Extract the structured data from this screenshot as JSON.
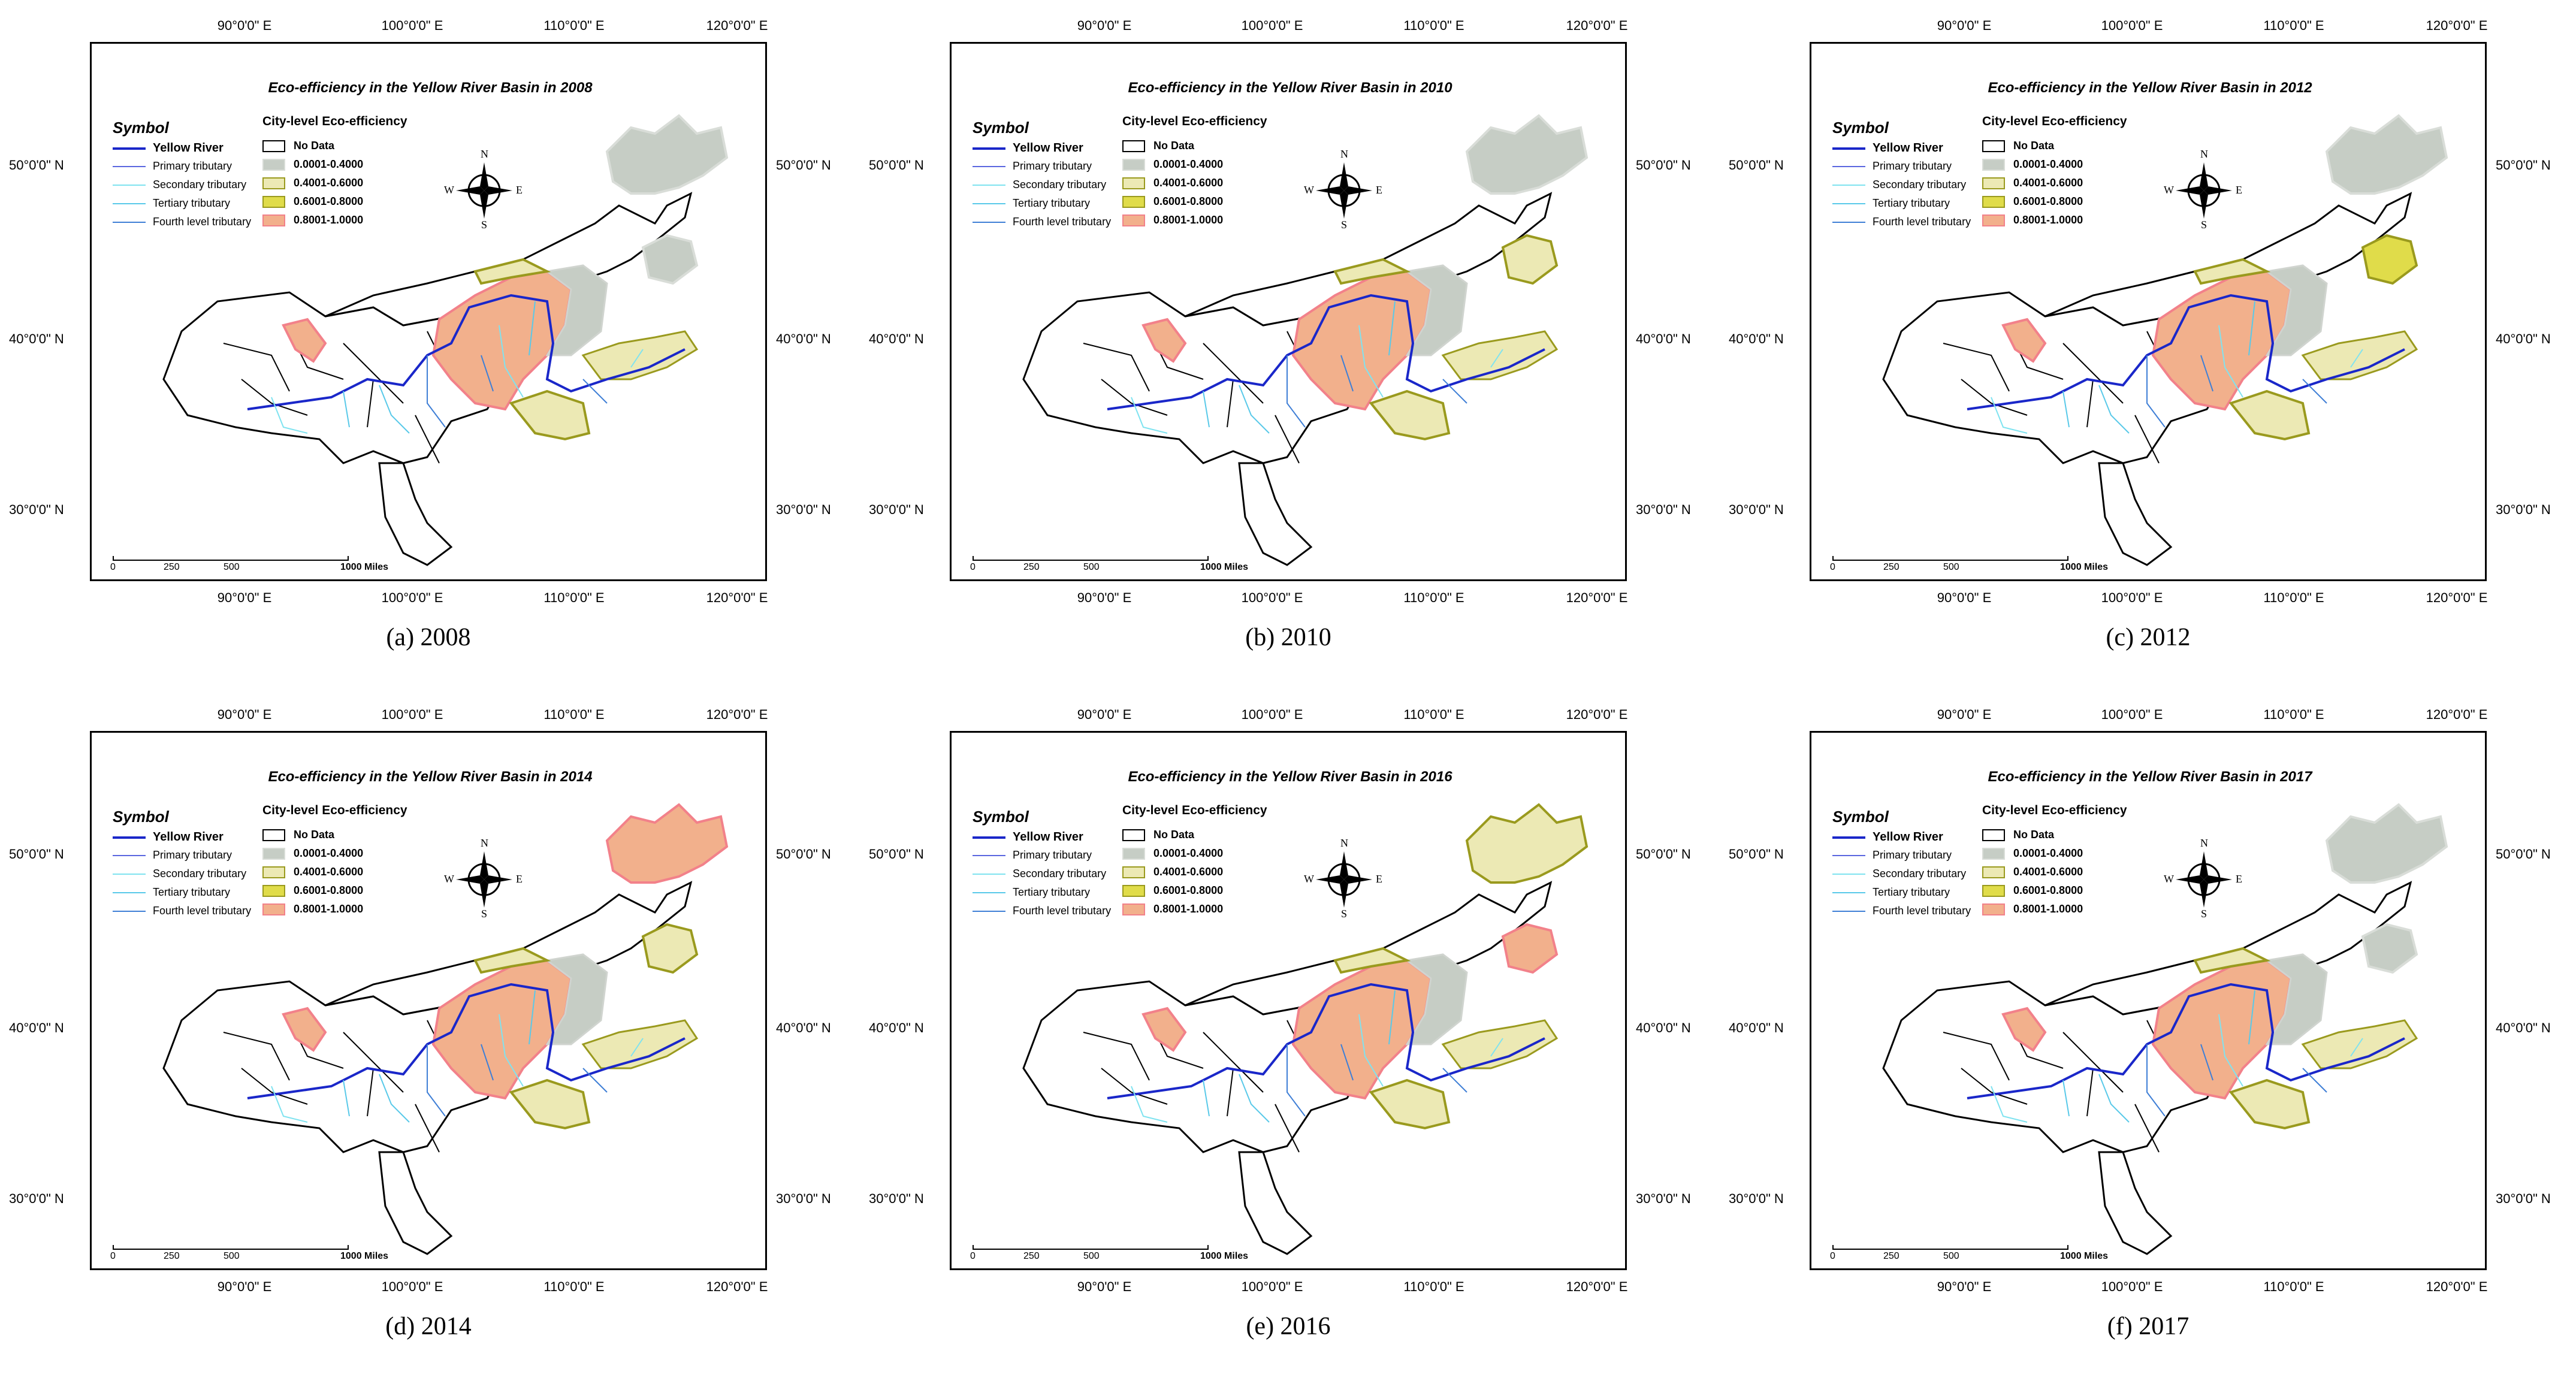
{
  "colors": {
    "class_no_data": "#ffffff",
    "class_1": "#c6cdc5",
    "class_2": "#ece9b4",
    "class_3": "#e0dc4a",
    "class_4": "#f2b08c",
    "class_4_border": "#f2818a",
    "class_3_border": "#9a9a1e",
    "river_main": "#1a27c9",
    "tributary_primary": "#5a67e0",
    "tributary_secondary": "#7fe3f0",
    "tributary_tertiary": "#59c9e9",
    "tributary_fourth": "#3f7fd6"
  },
  "common": {
    "lon_labels": [
      "90°0'0\" E",
      "100°0'0\" E",
      "110°0'0\" E",
      "120°0'0\" E"
    ],
    "lat_labels": [
      "50°0'0\" N",
      "40°0'0\" N",
      "30°0'0\" N"
    ],
    "symbol_title": "Symbol",
    "legend_head": "City-level Eco-efficiency",
    "rivers": [
      "Yellow River",
      "Primary tributary",
      "Secondary tributary",
      "Tertiary tributary",
      "Fourth level tributary"
    ],
    "classes": [
      "No Data",
      "0.0001-0.4000",
      "0.4001-0.6000",
      "0.6001-0.8000",
      "0.8001-1.0000"
    ],
    "scale_labels": [
      "0",
      "250",
      "500",
      "1000 Miles"
    ],
    "compass": {
      "n": "N",
      "s": "S",
      "e": "E",
      "w": "W"
    }
  },
  "panels": [
    {
      "title": "Eco-efficiency in the Yellow River Basin in 2008",
      "caption": "(a) 2008",
      "ne_class": 1,
      "ne_south_class": 1
    },
    {
      "title": "Eco-efficiency in the Yellow River Basin in 2010",
      "caption": "(b) 2010",
      "ne_class": 1,
      "ne_south_class": 2
    },
    {
      "title": "Eco-efficiency in the Yellow River Basin in 2012",
      "caption": "(c) 2012",
      "ne_class": 1,
      "ne_south_class": 3
    },
    {
      "title": "Eco-efficiency in the Yellow River Basin in 2014",
      "caption": "(d) 2014",
      "ne_class": 4,
      "ne_south_class": 2
    },
    {
      "title": "Eco-efficiency in the Yellow River Basin in 2016",
      "caption": "(e) 2016",
      "ne_class": 2,
      "ne_south_class": 4
    },
    {
      "title": "Eco-efficiency in the Yellow River Basin in 2017",
      "caption": "(f) 2017",
      "ne_class": 1,
      "ne_south_class": 1
    }
  ]
}
